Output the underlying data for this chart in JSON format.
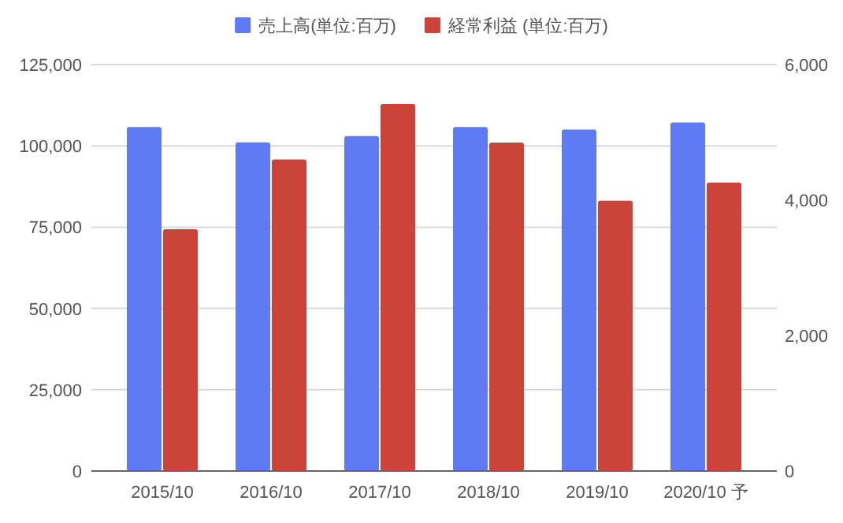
{
  "chart_data": {
    "type": "bar",
    "categories": [
      "2015/10",
      "2016/10",
      "2017/10",
      "2018/10",
      "2019/10",
      "2020/10 予"
    ],
    "series": [
      {
        "name": "売上高(単位:百万)",
        "color": "#5f7bf4",
        "values": [
          105800,
          101100,
          103000,
          105800,
          105000,
          107200
        ]
      },
      {
        "name": "経常利益 (単位:百万)",
        "color": "#cc4339",
        "axis": "y2",
        "values": [
          3570,
          4600,
          5420,
          4850,
          3990,
          4260
        ]
      }
    ],
    "ylim": [
      0,
      125000
    ],
    "yticks": [
      {
        "value": 0,
        "label": "0"
      },
      {
        "value": 25000,
        "label": "25,000"
      },
      {
        "value": 50000,
        "label": "50,000"
      },
      {
        "value": 75000,
        "label": "75,000"
      },
      {
        "value": 100000,
        "label": "100,000"
      },
      {
        "value": 125000,
        "label": "125,000"
      }
    ],
    "y2lim": [
      0,
      6000
    ],
    "y2ticks": [
      {
        "value": 0,
        "label": "0"
      },
      {
        "value": 2000,
        "label": "2,000"
      },
      {
        "value": 4000,
        "label": "4,000"
      },
      {
        "value": 6000,
        "label": "6,000"
      }
    ],
    "grid": "y",
    "legend": "top"
  }
}
